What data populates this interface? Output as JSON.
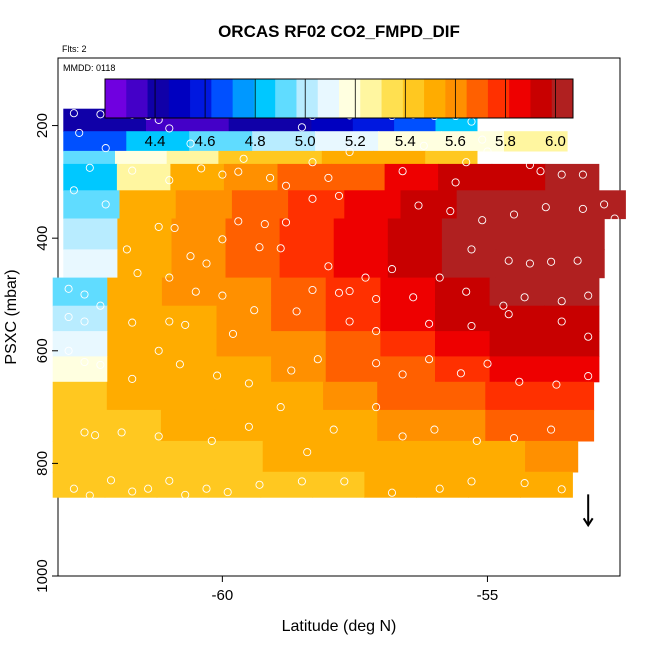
{
  "chart_data": {
    "type": "heatmap",
    "title": "ORCAS RF02 CO2_FMPD_DIF",
    "flights_note": "Flts: 2",
    "date_note": "MMDD: 0118",
    "xlabel": "Latitude (deg N)",
    "ylabel": "PSXC (mbar)",
    "xlim": [
      -63.1,
      -52.5
    ],
    "ylim": [
      1000,
      80
    ],
    "x_ticks": [
      {
        "value": -60,
        "label": "-60"
      },
      {
        "value": -55,
        "label": "-55"
      }
    ],
    "y_ticks": [
      {
        "value": 200,
        "label": "200"
      },
      {
        "value": 400,
        "label": "400"
      },
      {
        "value": 600,
        "label": "600"
      },
      {
        "value": 800,
        "label": "800"
      },
      {
        "value": 1000,
        "label": "1000"
      }
    ],
    "colorbar": {
      "min": 4.2,
      "max": 6.07,
      "ticks": [
        {
          "value": 4.4,
          "label": "4.4"
        },
        {
          "value": 4.6,
          "label": "4.6"
        },
        {
          "value": 4.8,
          "label": "4.8"
        },
        {
          "value": 5.0,
          "label": "5.0"
        },
        {
          "value": 5.2,
          "label": "5.2"
        },
        {
          "value": 5.4,
          "label": "5.4"
        },
        {
          "value": 5.6,
          "label": "5.6"
        },
        {
          "value": 5.8,
          "label": "5.8"
        },
        {
          "value": 6.0,
          "label": "6.0"
        }
      ],
      "colors": [
        "#7000e0",
        "#4400c8",
        "#1000a8",
        "#0000c0",
        "#0018e0",
        "#0050ff",
        "#0098ff",
        "#00c8ff",
        "#60dcff",
        "#b8ecff",
        "#e8f8ff",
        "#ffffe0",
        "#fff6a0",
        "#ffe050",
        "#ffc820",
        "#ffac00",
        "#ff9000",
        "#ff6000",
        "#ff3000",
        "#ee0000",
        "#c80000",
        "#b02020"
      ]
    },
    "bands": [
      {
        "p_top": 170,
        "p_bot": 210,
        "x_from": -63.0,
        "x_to": -55.2,
        "values": [
          4.4,
          4.38,
          4.36,
          4.36,
          4.38,
          4.42,
          4.5,
          4.6,
          4.7,
          4.8
        ]
      },
      {
        "p_top": 210,
        "p_bot": 245,
        "x_from": -63.0,
        "x_to": -53.5,
        "values": [
          4.7,
          4.8,
          4.9,
          5.0,
          5.08,
          5.15,
          5.2,
          5.25
        ]
      },
      {
        "p_top": 245,
        "p_bot": 268,
        "x_from": -63.0,
        "x_to": -55.2,
        "values": [
          4.95,
          5.15,
          5.3,
          5.4,
          5.45,
          5.5,
          5.48,
          5.42
        ]
      },
      {
        "p_top": 268,
        "p_bot": 315,
        "x_from": -63.0,
        "x_to": -52.9,
        "values": [
          4.8,
          5.3,
          5.5,
          5.58,
          5.65,
          5.72,
          5.82,
          5.92,
          5.98,
          6.0
        ]
      },
      {
        "p_top": 315,
        "p_bot": 365,
        "x_from": -63.0,
        "x_to": -52.4,
        "values": [
          4.9,
          5.5,
          5.58,
          5.66,
          5.75,
          5.82,
          5.92,
          6.02,
          6.05,
          6.05
        ]
      },
      {
        "p_top": 365,
        "p_bot": 420,
        "x_from": -63.0,
        "x_to": -52.8,
        "values": [
          5.0,
          5.55,
          5.6,
          5.68,
          5.76,
          5.84,
          5.94,
          6.02,
          6.05,
          6.04
        ]
      },
      {
        "p_top": 420,
        "p_bot": 470,
        "x_from": -63.0,
        "x_to": -52.8,
        "values": [
          5.1,
          5.55,
          5.6,
          5.66,
          5.74,
          5.82,
          5.9,
          6.0,
          6.04,
          6.02
        ]
      },
      {
        "p_top": 470,
        "p_bot": 520,
        "x_from": -63.2,
        "x_to": -52.9,
        "values": [
          4.9,
          5.55,
          5.6,
          5.64,
          5.7,
          5.78,
          5.86,
          5.96,
          6.0,
          6.0
        ]
      },
      {
        "p_top": 520,
        "p_bot": 565,
        "x_from": -63.2,
        "x_to": -52.9,
        "values": [
          5.0,
          5.52,
          5.56,
          5.6,
          5.66,
          5.74,
          5.82,
          5.9,
          5.96,
          5.96
        ]
      },
      {
        "p_top": 565,
        "p_bot": 610,
        "x_from": -63.2,
        "x_to": -52.9,
        "values": [
          5.1,
          5.5,
          5.55,
          5.58,
          5.64,
          5.7,
          5.78,
          5.86,
          5.92,
          5.92
        ]
      },
      {
        "p_top": 610,
        "p_bot": 655,
        "x_from": -63.2,
        "x_to": -52.9,
        "values": [
          5.2,
          5.5,
          5.52,
          5.56,
          5.6,
          5.66,
          5.72,
          5.8,
          5.86,
          5.86
        ]
      },
      {
        "p_top": 655,
        "p_bot": 705,
        "x_from": -63.2,
        "x_to": -53.0,
        "values": [
          5.45,
          5.48,
          5.5,
          5.52,
          5.56,
          5.6,
          5.66,
          5.72,
          5.78,
          5.8
        ]
      },
      {
        "p_top": 705,
        "p_bot": 760,
        "x_from": -63.2,
        "x_to": -53.0,
        "values": [
          5.45,
          5.46,
          5.48,
          5.5,
          5.52,
          5.54,
          5.58,
          5.62,
          5.66,
          5.7
        ]
      },
      {
        "p_top": 760,
        "p_bot": 815,
        "x_from": -63.2,
        "x_to": -53.3,
        "values": [
          5.45,
          5.45,
          5.46,
          5.47,
          5.48,
          5.5,
          5.52,
          5.54,
          5.56,
          5.58
        ]
      },
      {
        "p_top": 815,
        "p_bot": 860,
        "x_from": -63.2,
        "x_to": -53.4,
        "values": [
          5.42,
          5.43,
          5.44,
          5.45,
          5.46,
          5.47,
          5.48,
          5.5,
          5.5,
          5.5
        ]
      }
    ],
    "points": [
      [
        -62.8,
        178
      ],
      [
        -62.7,
        213
      ],
      [
        -62.3,
        180
      ],
      [
        -62.2,
        240
      ],
      [
        -61.7,
        181
      ],
      [
        -61.4,
        183
      ],
      [
        -61.2,
        190
      ],
      [
        -61.0,
        205
      ],
      [
        -60.6,
        232
      ],
      [
        -59.6,
        259
      ],
      [
        -58.5,
        203
      ],
      [
        -58.3,
        183
      ],
      [
        -57.9,
        180
      ],
      [
        -57.6,
        182
      ],
      [
        -57.3,
        178
      ],
      [
        -56.8,
        183
      ],
      [
        -56.4,
        181
      ],
      [
        -56.0,
        183
      ],
      [
        -55.6,
        183
      ],
      [
        -55.3,
        193
      ],
      [
        -56.2,
        236
      ],
      [
        -57.6,
        247
      ],
      [
        -55.1,
        225
      ],
      [
        -55.0,
        246
      ],
      [
        -62.5,
        275
      ],
      [
        -61.7,
        280
      ],
      [
        -61.0,
        297
      ],
      [
        -60.4,
        276
      ],
      [
        -60.0,
        287
      ],
      [
        -59.7,
        282
      ],
      [
        -59.1,
        293
      ],
      [
        -58.8,
        307
      ],
      [
        -58.3,
        265
      ],
      [
        -58.0,
        293
      ],
      [
        -56.6,
        281
      ],
      [
        -55.4,
        265
      ],
      [
        -55.6,
        301
      ],
      [
        -54.2,
        270
      ],
      [
        -54.0,
        281
      ],
      [
        -53.6,
        287
      ],
      [
        -53.2,
        287
      ],
      [
        -62.8,
        315
      ],
      [
        -62.2,
        340
      ],
      [
        -61.2,
        380
      ],
      [
        -60.9,
        382
      ],
      [
        -60.0,
        402
      ],
      [
        -59.7,
        370
      ],
      [
        -59.2,
        375
      ],
      [
        -58.8,
        372
      ],
      [
        -58.3,
        330
      ],
      [
        -57.8,
        325
      ],
      [
        -56.3,
        342
      ],
      [
        -55.7,
        352
      ],
      [
        -55.1,
        368
      ],
      [
        -54.5,
        358
      ],
      [
        -53.9,
        345
      ],
      [
        -53.2,
        348
      ],
      [
        -52.8,
        340
      ],
      [
        -52.6,
        365
      ],
      [
        -61.8,
        420
      ],
      [
        -61.6,
        462
      ],
      [
        -60.6,
        432
      ],
      [
        -60.3,
        445
      ],
      [
        -59.3,
        416
      ],
      [
        -58.9,
        418
      ],
      [
        -58.0,
        450
      ],
      [
        -57.3,
        470
      ],
      [
        -56.8,
        455
      ],
      [
        -55.9,
        470
      ],
      [
        -55.3,
        420
      ],
      [
        -54.6,
        440
      ],
      [
        -54.2,
        445
      ],
      [
        -53.8,
        442
      ],
      [
        -53.3,
        440
      ],
      [
        -52.7,
        460
      ],
      [
        -62.9,
        490
      ],
      [
        -62.6,
        500
      ],
      [
        -62.3,
        520
      ],
      [
        -61.0,
        470
      ],
      [
        -60.5,
        495
      ],
      [
        -60.0,
        502
      ],
      [
        -59.4,
        528
      ],
      [
        -58.3,
        492
      ],
      [
        -57.8,
        497
      ],
      [
        -57.6,
        494
      ],
      [
        -57.1,
        508
      ],
      [
        -56.4,
        505
      ],
      [
        -55.4,
        495
      ],
      [
        -54.7,
        520
      ],
      [
        -54.3,
        505
      ],
      [
        -53.6,
        512
      ],
      [
        -53.1,
        502
      ],
      [
        -52.8,
        520
      ],
      [
        -62.9,
        540
      ],
      [
        -62.6,
        548
      ],
      [
        -61.7,
        550
      ],
      [
        -61.0,
        548
      ],
      [
        -60.7,
        554
      ],
      [
        -59.8,
        570
      ],
      [
        -58.6,
        530
      ],
      [
        -57.6,
        548
      ],
      [
        -57.1,
        565
      ],
      [
        -56.1,
        552
      ],
      [
        -55.3,
        556
      ],
      [
        -54.6,
        535
      ],
      [
        -53.6,
        548
      ],
      [
        -53.1,
        575
      ],
      [
        -62.9,
        600
      ],
      [
        -62.6,
        620
      ],
      [
        -62.3,
        625
      ],
      [
        -61.7,
        650
      ],
      [
        -61.2,
        600
      ],
      [
        -60.8,
        624
      ],
      [
        -60.1,
        644
      ],
      [
        -59.5,
        658
      ],
      [
        -58.7,
        635
      ],
      [
        -58.2,
        615
      ],
      [
        -57.1,
        622
      ],
      [
        -56.6,
        642
      ],
      [
        -56.1,
        615
      ],
      [
        -55.5,
        640
      ],
      [
        -55.0,
        623
      ],
      [
        -54.4,
        655
      ],
      [
        -53.7,
        660
      ],
      [
        -53.1,
        645
      ],
      [
        -62.6,
        745
      ],
      [
        -62.4,
        750
      ],
      [
        -61.9,
        745
      ],
      [
        -61.2,
        752
      ],
      [
        -60.2,
        760
      ],
      [
        -59.5,
        735
      ],
      [
        -58.9,
        700
      ],
      [
        -58.4,
        780
      ],
      [
        -57.9,
        740
      ],
      [
        -57.1,
        700
      ],
      [
        -56.6,
        752
      ],
      [
        -56.0,
        740
      ],
      [
        -55.2,
        760
      ],
      [
        -54.5,
        755
      ],
      [
        -53.8,
        740
      ],
      [
        -53.2,
        780
      ],
      [
        -62.8,
        845
      ],
      [
        -62.5,
        857
      ],
      [
        -62.1,
        830
      ],
      [
        -61.7,
        850
      ],
      [
        -61.4,
        845
      ],
      [
        -61.0,
        831
      ],
      [
        -60.7,
        856
      ],
      [
        -60.3,
        845
      ],
      [
        -59.9,
        851
      ],
      [
        -59.3,
        838
      ],
      [
        -58.5,
        832
      ],
      [
        -57.7,
        832
      ],
      [
        -56.8,
        852
      ],
      [
        -55.9,
        845
      ],
      [
        -55.3,
        832
      ],
      [
        -54.3,
        835
      ],
      [
        -53.6,
        846
      ],
      [
        -53.2,
        858
      ]
    ],
    "arrow": {
      "x": -53.1,
      "p_from": 855,
      "p_to": 910
    }
  }
}
